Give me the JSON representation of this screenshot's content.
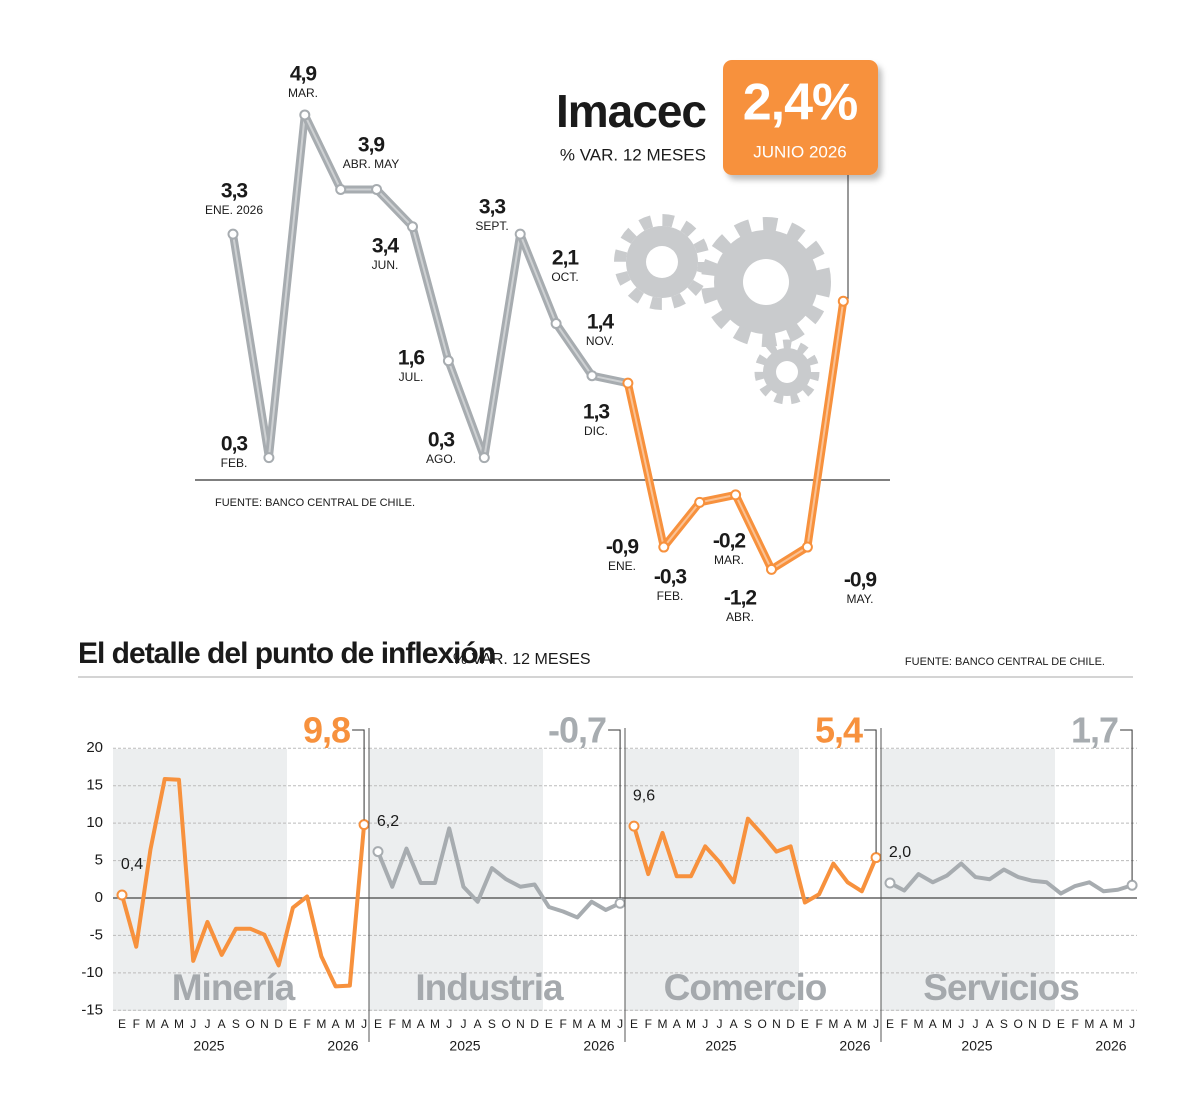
{
  "chart_data": [
    {
      "type": "line",
      "title": "Imacec",
      "subtitle": "% VAR. 12 MESES",
      "source": "FUENTE: BANCO CENTRAL DE CHILE.",
      "categories": [
        "ENE. 2026",
        "FEB.",
        "MAR.",
        "ABR. MAY",
        null,
        "JUN.",
        "JUL.",
        "AGO.",
        "SEPT.",
        "OCT.",
        "NOV.",
        "DIC.",
        "ENE.",
        "FEB.",
        "MAR.",
        "ABR.",
        "MAY.",
        "JUNIO 2026"
      ],
      "series": [
        {
          "color": "#a7acb0",
          "highlight_color": "#f7913d",
          "highlight_from": 11,
          "values": [
            3.3,
            0.3,
            4.9,
            3.9,
            3.9,
            3.4,
            1.6,
            0.3,
            3.3,
            2.1,
            1.4,
            1.3,
            -0.9,
            -0.3,
            -0.2,
            -1.2,
            -0.9,
            2.4
          ],
          "value_labels": [
            "3,3",
            "0,3",
            "4,9",
            "3,9",
            null,
            "3,4",
            "1,6",
            "0,3",
            "3,3",
            "2,1",
            "1,4",
            "1,3",
            "-0,9",
            "-0,3",
            "-0,2",
            "-1,2",
            "-0,9",
            "2,4%"
          ]
        }
      ]
    },
    {
      "type": "line",
      "title": "Minería",
      "categories": [
        "E",
        "F",
        "M",
        "A",
        "M",
        "J",
        "J",
        "A",
        "S",
        "O",
        "N",
        "D",
        "E",
        "F",
        "M",
        "A",
        "M",
        "J"
      ],
      "years": [
        "2025",
        "2026"
      ],
      "ylim": [
        -15,
        20
      ],
      "yticks": [
        -15,
        -10,
        -5,
        0,
        5,
        10,
        15,
        20
      ],
      "series": [
        {
          "color": "#f7913d",
          "values": [
            0.4,
            -6.5,
            6.5,
            15.9,
            15.8,
            -8.4,
            -3.2,
            -7.6,
            -4.1,
            -4.1,
            -4.9,
            -9.0,
            -1.3,
            0.2,
            -7.8,
            -11.8,
            -11.7,
            9.8
          ],
          "value_labels": [
            "0,4",
            null,
            null,
            null,
            null,
            null,
            null,
            null,
            null,
            null,
            null,
            null,
            null,
            null,
            null,
            null,
            null,
            "9,8"
          ]
        }
      ]
    },
    {
      "type": "line",
      "title": "Industria",
      "categories": [
        "E",
        "F",
        "M",
        "A",
        "M",
        "J",
        "J",
        "A",
        "S",
        "O",
        "N",
        "D",
        "E",
        "F",
        "M",
        "A",
        "M",
        "J"
      ],
      "years": [
        "2025",
        "2026"
      ],
      "ylim": [
        -15,
        20
      ],
      "yticks": [
        -15,
        -10,
        -5,
        0,
        5,
        10,
        15,
        20
      ],
      "series": [
        {
          "color": "#a7acb0",
          "values": [
            6.2,
            1.5,
            6.6,
            2.0,
            2.0,
            9.3,
            1.5,
            -0.5,
            4.0,
            2.5,
            1.5,
            1.8,
            -1.2,
            -1.8,
            -2.6,
            -0.5,
            -1.6,
            -0.7
          ],
          "value_labels": [
            "6,2",
            null,
            null,
            null,
            null,
            null,
            null,
            null,
            null,
            null,
            null,
            null,
            null,
            null,
            null,
            null,
            null,
            "-0,7"
          ]
        }
      ]
    },
    {
      "type": "line",
      "title": "Comercio",
      "categories": [
        "E",
        "F",
        "M",
        "A",
        "M",
        "J",
        "J",
        "A",
        "S",
        "O",
        "N",
        "D",
        "E",
        "F",
        "M",
        "A",
        "M",
        "J"
      ],
      "years": [
        "2025",
        "2026"
      ],
      "ylim": [
        -15,
        20
      ],
      "yticks": [
        -15,
        -10,
        -5,
        0,
        5,
        10,
        15,
        20
      ],
      "series": [
        {
          "color": "#f7913d",
          "values": [
            9.6,
            3.2,
            8.7,
            2.9,
            2.9,
            6.9,
            4.8,
            2.1,
            10.6,
            8.5,
            6.2,
            6.9,
            -0.6,
            0.5,
            4.6,
            2.1,
            0.9,
            5.4
          ],
          "value_labels": [
            "9,6",
            null,
            null,
            null,
            null,
            null,
            null,
            null,
            null,
            null,
            null,
            null,
            null,
            null,
            null,
            null,
            null,
            "5,4"
          ]
        }
      ]
    },
    {
      "type": "line",
      "title": "Servicios",
      "categories": [
        "E",
        "F",
        "M",
        "A",
        "M",
        "J",
        "J",
        "A",
        "S",
        "O",
        "N",
        "D",
        "E",
        "F",
        "M",
        "A",
        "M",
        "J"
      ],
      "years": [
        "2025",
        "2026"
      ],
      "ylim": [
        -15,
        20
      ],
      "yticks": [
        -15,
        -10,
        -5,
        0,
        5,
        10,
        15,
        20
      ],
      "series": [
        {
          "color": "#a7acb0",
          "values": [
            2.0,
            1.0,
            3.2,
            2.1,
            3.0,
            4.6,
            2.8,
            2.5,
            3.8,
            2.8,
            2.3,
            2.1,
            0.6,
            1.6,
            2.1,
            0.9,
            1.1,
            1.7
          ],
          "value_labels": [
            "2,0",
            null,
            null,
            null,
            null,
            null,
            null,
            null,
            null,
            null,
            null,
            null,
            null,
            null,
            null,
            null,
            null,
            "1,7"
          ]
        }
      ]
    }
  ],
  "section": {
    "title": "El detalle del punto de inflexión",
    "subtitle": "% VAR. 12 MESES",
    "source": "FUENTE: BANCO CENTRAL DE CHILE."
  }
}
